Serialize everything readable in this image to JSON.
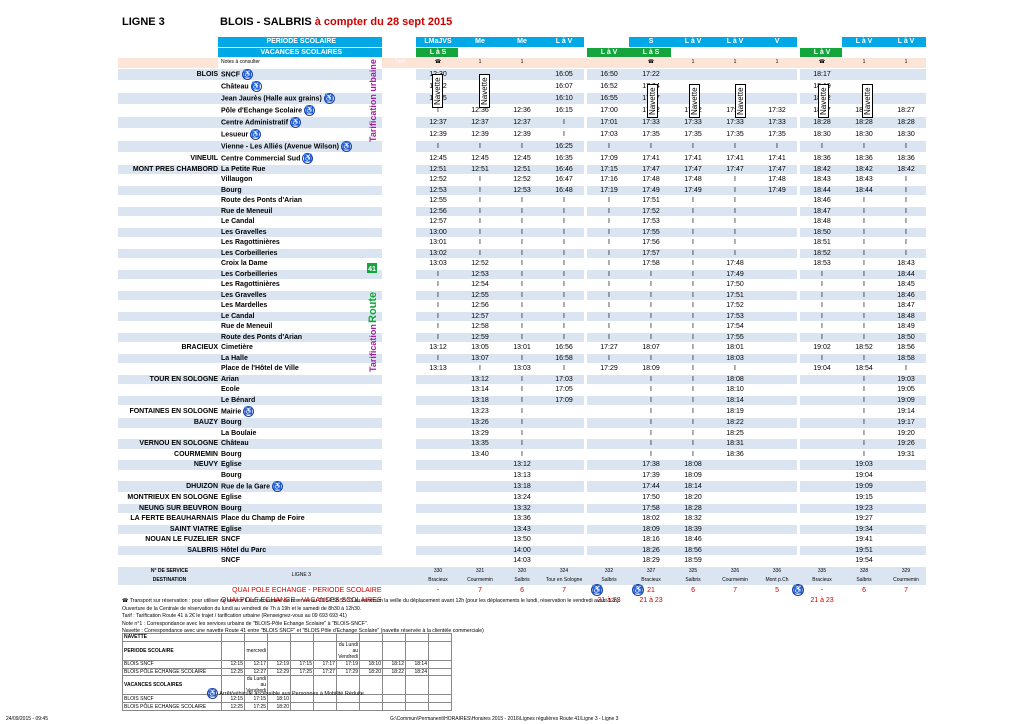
{
  "header": {
    "ligne": "LIGNE 3",
    "title": "BLOIS - SALBRIS",
    "title_red": "à compter du 28 sept 2015"
  },
  "period_row": {
    "label": "PERIODE SCOLAIRE",
    "cols": [
      "LMaJVS",
      "Me",
      "Me",
      "L à V",
      "",
      "S",
      "L à V",
      "L à V",
      "V",
      "",
      "L à V",
      "L à V"
    ]
  },
  "vac_row": {
    "label": "VACANCES SCOLAIRES",
    "cols": [
      "L à S",
      "",
      "",
      "",
      "L à V",
      "L à S",
      "",
      "",
      "",
      "L à V",
      "",
      ""
    ]
  },
  "notes_row": {
    "label": "Notes à consulter",
    "tarif": "Tarif",
    "cols": [
      "☎",
      "1",
      "1",
      "",
      "",
      "☎",
      "1",
      "1",
      "1",
      "☎",
      "1",
      "1"
    ]
  },
  "stops": [
    {
      "commune": "BLOIS",
      "stop": "SNCF",
      "wc": true,
      "times": [
        "12:30",
        "",
        "",
        "16:05",
        "16:50",
        "17:22",
        "",
        "",
        "",
        "18:17",
        "",
        ""
      ]
    },
    {
      "commune": "",
      "stop": "Château",
      "wc": true,
      "times": [
        "12:32",
        "",
        "",
        "16:07",
        "16:52",
        "17:24",
        "",
        "",
        "",
        "18:19",
        "",
        ""
      ]
    },
    {
      "commune": "",
      "stop": "Jean Jaurès (Halle aux grains)",
      "wc": true,
      "times": [
        "12:35",
        "",
        "",
        "16:10",
        "16:55",
        "17:27",
        "",
        "",
        "",
        "18:22",
        "",
        ""
      ]
    },
    {
      "commune": "",
      "stop": "Pôle d'Echange Scolaire",
      "wc": true,
      "times": [
        "I",
        "12:36",
        "12:36",
        "16:15",
        "17:00",
        "17:32",
        "17:32",
        "17:32",
        "17:32",
        "18:27",
        "18:27",
        "18:27"
      ]
    },
    {
      "commune": "",
      "stop": "Centre Administratif",
      "wc": true,
      "times": [
        "12:37",
        "12:37",
        "12:37",
        "I",
        "17:01",
        "17:33",
        "17:33",
        "17:33",
        "17:33",
        "18:28",
        "18:28",
        "18:28"
      ]
    },
    {
      "commune": "",
      "stop": "Lesueur",
      "wc": true,
      "times": [
        "12:39",
        "12:39",
        "12:39",
        "I",
        "17:03",
        "17:35",
        "17:35",
        "17:35",
        "17:35",
        "18:30",
        "18:30",
        "18:30"
      ]
    },
    {
      "commune": "",
      "stop": "Vienne - Les Alliés (Avenue Wilson)",
      "wc": true,
      "times": [
        "I",
        "I",
        "I",
        "16:25",
        "I",
        "I",
        "I",
        "I",
        "I",
        "I",
        "I",
        "I"
      ]
    },
    {
      "commune": "VINEUIL",
      "stop": "Centre Commercial Sud",
      "wc": true,
      "times": [
        "12:45",
        "12:45",
        "12:45",
        "16:35",
        "17:09",
        "17:41",
        "17:41",
        "17:41",
        "17:41",
        "18:36",
        "18:36",
        "18:36"
      ]
    },
    {
      "commune": "MONT PRES CHAMBORD",
      "stop": "La Petite Rue",
      "wc": false,
      "times": [
        "12:51",
        "12:51",
        "12:51",
        "16:46",
        "17:15",
        "17:47",
        "17:47",
        "17:47",
        "17:47",
        "18:42",
        "18:42",
        "18:42"
      ]
    },
    {
      "commune": "",
      "stop": "Villaugon",
      "wc": false,
      "times": [
        "12:52",
        "I",
        "12:52",
        "16:47",
        "17:16",
        "17:48",
        "17:48",
        "I",
        "17:48",
        "18:43",
        "18:43",
        "I"
      ]
    },
    {
      "commune": "",
      "stop": "Bourg",
      "wc": false,
      "times": [
        "12:53",
        "I",
        "12:53",
        "16:48",
        "17:19",
        "17:49",
        "17:49",
        "I",
        "17:49",
        "18:44",
        "18:44",
        "I"
      ]
    },
    {
      "commune": "",
      "stop": "Route des Ponts d'Arian",
      "wc": false,
      "times": [
        "12:55",
        "I",
        "I",
        "I",
        "I",
        "17:51",
        "I",
        "I",
        "",
        "18:46",
        "I",
        "I"
      ]
    },
    {
      "commune": "",
      "stop": "Rue de Meneuil",
      "wc": false,
      "times": [
        "12:56",
        "I",
        "I",
        "I",
        "I",
        "17:52",
        "I",
        "I",
        "",
        "18:47",
        "I",
        "I"
      ]
    },
    {
      "commune": "",
      "stop": "Le Candal",
      "wc": false,
      "times": [
        "12:57",
        "I",
        "I",
        "I",
        "I",
        "17:53",
        "I",
        "I",
        "",
        "18:48",
        "I",
        "I"
      ]
    },
    {
      "commune": "",
      "stop": "Les Gravelles",
      "wc": false,
      "times": [
        "13:00",
        "I",
        "I",
        "I",
        "I",
        "17:55",
        "I",
        "I",
        "",
        "18:50",
        "I",
        "I"
      ]
    },
    {
      "commune": "",
      "stop": "Les Ragottinières",
      "wc": false,
      "times": [
        "13:01",
        "I",
        "I",
        "I",
        "I",
        "17:56",
        "I",
        "I",
        "",
        "18:51",
        "I",
        "I"
      ]
    },
    {
      "commune": "",
      "stop": "Les Corbeilleries",
      "wc": false,
      "times": [
        "13:02",
        "I",
        "I",
        "I",
        "I",
        "17:57",
        "I",
        "I",
        "",
        "18:52",
        "I",
        "I"
      ]
    },
    {
      "commune": "",
      "stop": "Croix la Dame",
      "wc": false,
      "times": [
        "13:03",
        "12:52",
        "I",
        "I",
        "I",
        "17:58",
        "I",
        "17:48",
        "",
        "18:53",
        "I",
        "18:43"
      ]
    },
    {
      "commune": "",
      "stop": "Les Corbeilleries",
      "wc": false,
      "times": [
        "I",
        "12:53",
        "I",
        "I",
        "I",
        "I",
        "I",
        "17:49",
        "",
        "I",
        "I",
        "18:44"
      ]
    },
    {
      "commune": "",
      "stop": "Les Ragottinières",
      "wc": false,
      "times": [
        "I",
        "12:54",
        "I",
        "I",
        "I",
        "I",
        "I",
        "17:50",
        "",
        "I",
        "I",
        "18:45"
      ]
    },
    {
      "commune": "",
      "stop": "Les Gravelles",
      "wc": false,
      "times": [
        "I",
        "12:55",
        "I",
        "I",
        "I",
        "I",
        "I",
        "17:51",
        "",
        "I",
        "I",
        "18:46"
      ]
    },
    {
      "commune": "",
      "stop": "Les Mardelles",
      "wc": false,
      "times": [
        "I",
        "12:56",
        "I",
        "I",
        "I",
        "I",
        "I",
        "17:52",
        "",
        "I",
        "I",
        "18:47"
      ]
    },
    {
      "commune": "",
      "stop": "Le Candal",
      "wc": false,
      "times": [
        "I",
        "12:57",
        "I",
        "I",
        "I",
        "I",
        "I",
        "17:53",
        "",
        "I",
        "I",
        "18:48"
      ]
    },
    {
      "commune": "",
      "stop": "Rue de Meneuil",
      "wc": false,
      "times": [
        "I",
        "12:58",
        "I",
        "I",
        "I",
        "I",
        "I",
        "17:54",
        "",
        "I",
        "I",
        "18:49"
      ]
    },
    {
      "commune": "",
      "stop": "Route des Ponts d'Arian",
      "wc": false,
      "times": [
        "I",
        "12:59",
        "I",
        "I",
        "I",
        "I",
        "I",
        "17:55",
        "",
        "I",
        "I",
        "18:50"
      ]
    },
    {
      "commune": "BRACIEUX",
      "stop": "Cimetière",
      "wc": false,
      "times": [
        "13:12",
        "13:05",
        "13:01",
        "16:56",
        "17:27",
        "18:07",
        "I",
        "18:01",
        "",
        "19:02",
        "18:52",
        "18:56"
      ]
    },
    {
      "commune": "",
      "stop": "La Halle",
      "wc": false,
      "times": [
        "I",
        "13:07",
        "I",
        "16:58",
        "I",
        "I",
        "I",
        "18:03",
        "",
        "I",
        "I",
        "18:58"
      ]
    },
    {
      "commune": "",
      "stop": "Place de l'Hôtel de Ville",
      "wc": false,
      "times": [
        "13:13",
        "I",
        "13:03",
        "I",
        "17:29",
        "18:09",
        "I",
        "I",
        "",
        "19:04",
        "18:54",
        "I"
      ]
    },
    {
      "commune": "TOUR EN SOLOGNE",
      "stop": "Arian",
      "wc": false,
      "times": [
        "",
        "13:12",
        "I",
        "17:03",
        "",
        "I",
        "I",
        "18:08",
        "",
        "",
        "I",
        "19:03"
      ]
    },
    {
      "commune": "",
      "stop": "Ecole",
      "wc": false,
      "times": [
        "",
        "13:14",
        "I",
        "17:05",
        "",
        "I",
        "I",
        "18:10",
        "",
        "",
        "I",
        "19:05"
      ]
    },
    {
      "commune": "",
      "stop": "Le Bénard",
      "wc": false,
      "times": [
        "",
        "13:18",
        "I",
        "17:09",
        "",
        "I",
        "I",
        "18:14",
        "",
        "",
        "I",
        "19:09"
      ]
    },
    {
      "commune": "FONTAINES EN SOLOGNE",
      "stop": "Mairie",
      "wc": true,
      "times": [
        "",
        "13:23",
        "I",
        "",
        "",
        "I",
        "I",
        "18:19",
        "",
        "",
        "I",
        "19:14"
      ]
    },
    {
      "commune": "BAUZY",
      "stop": "Bourg",
      "wc": false,
      "times": [
        "",
        "13:26",
        "I",
        "",
        "",
        "I",
        "I",
        "18:22",
        "",
        "",
        "I",
        "19:17"
      ]
    },
    {
      "commune": "",
      "stop": "La Boulaie",
      "wc": false,
      "times": [
        "",
        "13:29",
        "I",
        "",
        "",
        "I",
        "I",
        "18:25",
        "",
        "",
        "I",
        "19:20"
      ]
    },
    {
      "commune": "VERNOU EN SOLOGNE",
      "stop": "Château",
      "wc": false,
      "times": [
        "",
        "13:35",
        "I",
        "",
        "",
        "I",
        "I",
        "18:31",
        "",
        "",
        "I",
        "19:26"
      ]
    },
    {
      "commune": "COURMEMIN",
      "stop": "Bourg",
      "wc": false,
      "times": [
        "",
        "13:40",
        "I",
        "",
        "",
        "I",
        "I",
        "18:36",
        "",
        "",
        "I",
        "19:31"
      ]
    },
    {
      "commune": "NEUVY",
      "stop": "Eglise",
      "wc": false,
      "times": [
        "",
        "",
        "13:12",
        "",
        "",
        "17:38",
        "18:08",
        "",
        "",
        "",
        "19:03",
        ""
      ]
    },
    {
      "commune": "",
      "stop": "Bourg",
      "wc": false,
      "times": [
        "",
        "",
        "13:13",
        "",
        "",
        "17:39",
        "18:09",
        "",
        "",
        "",
        "19:04",
        ""
      ]
    },
    {
      "commune": "DHUIZON",
      "stop": "Rue de la Gare",
      "wc": true,
      "times": [
        "",
        "",
        "13:18",
        "",
        "",
        "17:44",
        "18:14",
        "",
        "",
        "",
        "19:09",
        ""
      ]
    },
    {
      "commune": "MONTRIEUX EN SOLOGNE",
      "stop": "Eglise",
      "wc": false,
      "times": [
        "",
        "",
        "13:24",
        "",
        "",
        "17:50",
        "18:20",
        "",
        "",
        "",
        "19:15",
        ""
      ]
    },
    {
      "commune": "NEUNG SUR BEUVRON",
      "stop": "Bourg",
      "wc": false,
      "times": [
        "",
        "",
        "13:32",
        "",
        "",
        "17:58",
        "18:28",
        "",
        "",
        "",
        "19:23",
        ""
      ]
    },
    {
      "commune": "LA FERTE BEAUHARNAIS",
      "stop": "Place du Champ de Foire",
      "wc": false,
      "times": [
        "",
        "",
        "13:36",
        "",
        "",
        "18:02",
        "18:32",
        "",
        "",
        "",
        "19:27",
        ""
      ]
    },
    {
      "commune": "SAINT VIATRE",
      "stop": "Eglise",
      "wc": false,
      "times": [
        "",
        "",
        "13:43",
        "",
        "",
        "18:09",
        "18:39",
        "",
        "",
        "",
        "19:34",
        ""
      ]
    },
    {
      "commune": "NOUAN LE FUZELIER",
      "stop": "SNCF",
      "wc": false,
      "times": [
        "",
        "",
        "13:50",
        "",
        "",
        "18:16",
        "18:46",
        "",
        "",
        "",
        "19:41",
        ""
      ]
    },
    {
      "commune": "SALBRIS",
      "stop": "Hôtel du Parc",
      "wc": false,
      "times": [
        "",
        "",
        "14:00",
        "",
        "",
        "18:26",
        "18:56",
        "",
        "",
        "",
        "19:51",
        ""
      ]
    },
    {
      "commune": "",
      "stop": "SNCF",
      "wc": false,
      "times": [
        "",
        "",
        "14:03",
        "",
        "",
        "18:29",
        "18:59",
        "",
        "",
        "",
        "19:54",
        ""
      ]
    }
  ],
  "service_row": {
    "label1": "N° DE SERVICE",
    "label2": "DESTINATION",
    "ligne": "LIGNE 3",
    "cols": [
      [
        "330",
        "Bracieux"
      ],
      [
        "321",
        "Courmemin"
      ],
      [
        "320",
        "Salbris"
      ],
      [
        "324",
        "Tour en Sologne"
      ],
      [
        "332",
        "Salbris"
      ],
      [
        "327",
        "Bracieux"
      ],
      [
        "325",
        "Salbris"
      ],
      [
        "326",
        "Courmemin"
      ],
      [
        "336",
        "Mont p.Ch"
      ],
      [
        "335",
        "Bracieux"
      ],
      [
        "328",
        "Salbris"
      ],
      [
        "329",
        "Courmemin"
      ]
    ]
  },
  "quai_scol": {
    "label": "QUAI POLE ECHANGE - PERIODE SCOLAIRE",
    "cols": [
      "-",
      "7",
      "6",
      "7",
      "",
      "21",
      "6",
      "7",
      "5",
      "-",
      "6",
      "7"
    ]
  },
  "quai_vac": {
    "label": "QUAI POLE ECHANGE - VACANCES SCOLAIRES",
    "cols": [
      "",
      "",
      "",
      "",
      "21 à 23",
      "21 à 23",
      "",
      "",
      "",
      "21 à 23",
      "",
      ""
    ]
  },
  "navette_label": "Navette",
  "side_labels": {
    "urbaine": "Tarification urbaine",
    "tarif": "Tarification",
    "route": "Route 41"
  },
  "notes": [
    "☎ Transport sur réservation : pour utiliser ce service il est nécessaire de réserver au 02.54.58.55.33 au minimum la veille du déplacement avant 12h (pour les déplacements le lundi, réservation le vendredi avant 12h).",
    "Ouverture de la Centrale de réservation du lundi au vendredi de 7h à 19h et le samedi de 8h30 à 12h30.",
    "Tarif : Tarification Route 41 à 2€ le trajet / tarification urbaine (Renseignez-vous au 09 693 693 41)",
    "Note n°1 : Correspondance avec les services urbains de \"BLOIS-Pôle Echange Scolaire\" à \"BLOIS-SNCF\".",
    "Navette : Correspondance avec une navette Route 41 entre \"BLOIS SNCF\" et \"BLOIS Pôle d'Echange Scolaire\" (navette réservée à la clientèle commerciale)"
  ],
  "nav_table": [
    {
      "name": "NAVETTE",
      "vals": [
        "",
        "",
        "",
        "",
        "",
        "",
        "",
        "",
        "",
        ""
      ],
      "bold": true
    },
    {
      "name": "PERIODE SCOLAIRE",
      "vals": [
        "",
        "mercredi",
        "",
        "",
        "",
        "du Lundi au Vendredi",
        "",
        "",
        "",
        ""
      ],
      "bold": true
    },
    {
      "name": "BLOIS SNCF",
      "vals": [
        "12:15",
        "12:17",
        "12:19",
        "17:15",
        "17:17",
        "17:19",
        "18:10",
        "18:12",
        "18:14",
        ""
      ]
    },
    {
      "name": "BLOIS PÔLE ECHANGE SCOLAIRE",
      "vals": [
        "12:25",
        "12:27",
        "12:29",
        "17:25",
        "17:27",
        "17:29",
        "18:20",
        "18:22",
        "18:24",
        ""
      ]
    },
    {
      "name": "VACANCES SCOLAIRES",
      "vals": [
        "",
        "du Lundi au Vendredi",
        "",
        "",
        "",
        "",
        "",
        "",
        "",
        ""
      ],
      "bold": true
    },
    {
      "name": "BLOIS SNCF",
      "vals": [
        "12:15",
        "17:15",
        "18:10",
        "",
        "",
        "",
        "",
        "",
        "",
        ""
      ]
    },
    {
      "name": "BLOIS PÔLE ECHANGE SCOLAIRE",
      "vals": [
        "12:25",
        "17:25",
        "18:20",
        "",
        "",
        "",
        "",
        "",
        "",
        ""
      ]
    }
  ],
  "wc_note": "Arrêt/véhicule accessible aux Personnes à Mobilité Réduite",
  "footer": {
    "date": "24/09/2015 - 09:45",
    "path": "G:\\Commun\\Permanent\\HORAIRES\\Horaires 2015 - 2016\\Lignes régulières Route 41\\Ligne 3 - Ligne 3"
  },
  "colors": {
    "blue": "#00a9e6",
    "green": "#14a53c",
    "purple": "#a020a0",
    "red": "#d00000",
    "rowalt": "#dbe5f1"
  },
  "icons": {
    "wheelchair": "♿",
    "phone": "☎"
  }
}
